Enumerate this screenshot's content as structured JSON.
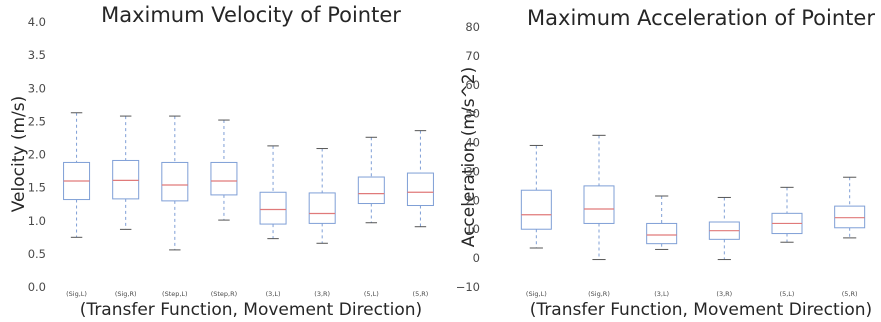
{
  "chart_data": [
    {
      "type": "box",
      "title": "Maximum Velocity of Pointer",
      "xlabel": "(Transfer Function, Movement Direction)",
      "ylabel": "Velocity (m/s)",
      "ylim": [
        0.0,
        4.0
      ],
      "yticks": [
        "0.0",
        "0.5",
        "1.0",
        "1.5",
        "2.0",
        "2.5",
        "3.0",
        "3.5",
        "4.0"
      ],
      "grid": false,
      "categories": [
        "(Sig,L)",
        "(Sig,R)",
        "(Step,L)",
        "(Step,R)",
        "(3,L)",
        "(3,R)",
        "(5,L)",
        "(5,R)"
      ],
      "boxes": [
        {
          "min": 0.75,
          "q1": 1.32,
          "median": 1.6,
          "q3": 1.88,
          "max": 2.63
        },
        {
          "min": 0.87,
          "q1": 1.33,
          "median": 1.61,
          "q3": 1.91,
          "max": 2.58
        },
        {
          "min": 0.56,
          "q1": 1.3,
          "median": 1.54,
          "q3": 1.88,
          "max": 2.58
        },
        {
          "min": 1.01,
          "q1": 1.39,
          "median": 1.6,
          "q3": 1.88,
          "max": 2.52
        },
        {
          "min": 0.73,
          "q1": 0.95,
          "median": 1.17,
          "q3": 1.43,
          "max": 2.13
        },
        {
          "min": 0.66,
          "q1": 0.96,
          "median": 1.11,
          "q3": 1.42,
          "max": 2.09
        },
        {
          "min": 0.97,
          "q1": 1.26,
          "median": 1.41,
          "q3": 1.66,
          "max": 2.26
        },
        {
          "min": 0.91,
          "q1": 1.23,
          "median": 1.43,
          "q3": 1.72,
          "max": 2.36
        }
      ]
    },
    {
      "type": "box",
      "title": "Maximum Acceleration of Pointer",
      "xlabel": "(Transfer Function, Movement Direction)",
      "ylabel": "Acceleration (m/s^2)",
      "ylim": [
        -10,
        80
      ],
      "yticks": [
        "−10",
        "0",
        "10",
        "20",
        "30",
        "40",
        "50",
        "60",
        "70",
        "80"
      ],
      "grid": false,
      "categories": [
        "(Sig,L)",
        "(Sig,R)",
        "(3,L)",
        "(3,R)",
        "(5,L)",
        "(5,R)"
      ],
      "boxes": [
        {
          "min": 3.5,
          "q1": 10.0,
          "median": 15.0,
          "q3": 23.5,
          "max": 39.0
        },
        {
          "min": -0.5,
          "q1": 12.0,
          "median": 17.0,
          "q3": 25.0,
          "max": 42.5
        },
        {
          "min": 3.0,
          "q1": 5.0,
          "median": 8.0,
          "q3": 12.0,
          "max": 21.5
        },
        {
          "min": -0.5,
          "q1": 6.5,
          "median": 9.5,
          "q3": 12.5,
          "max": 21.0
        },
        {
          "min": 5.5,
          "q1": 8.5,
          "median": 12.0,
          "q3": 15.5,
          "max": 24.5
        },
        {
          "min": 7.0,
          "q1": 10.5,
          "median": 14.0,
          "q3": 18.0,
          "max": 28.0
        }
      ]
    }
  ]
}
